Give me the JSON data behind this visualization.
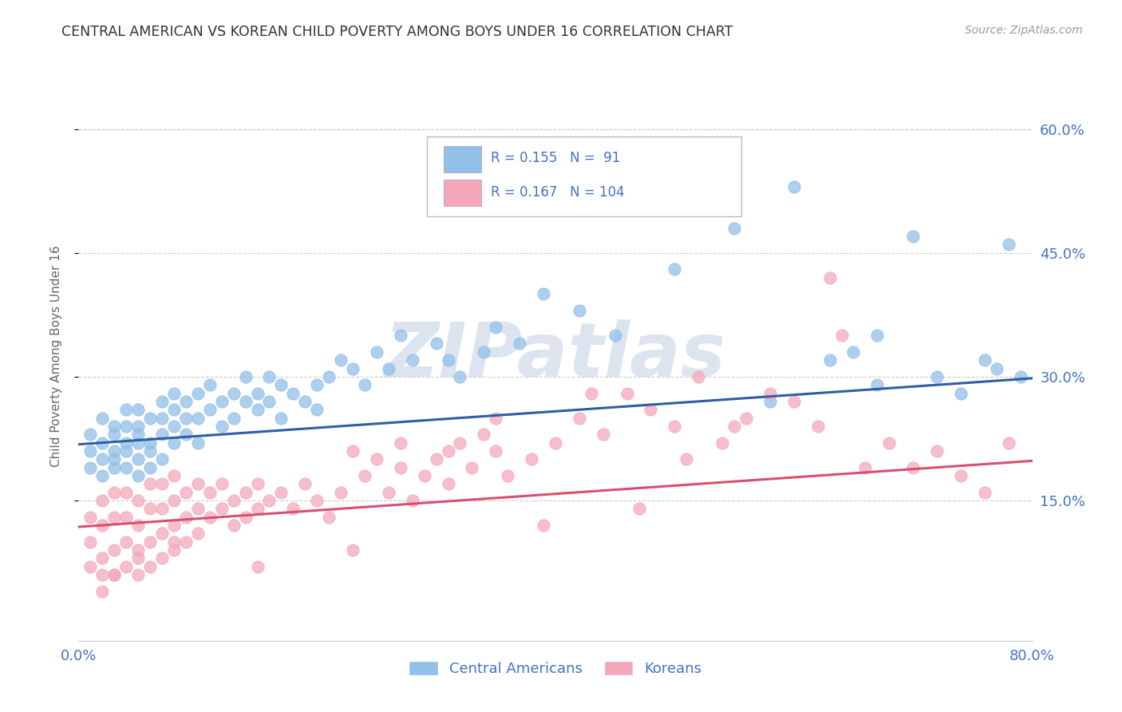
{
  "title": "CENTRAL AMERICAN VS KOREAN CHILD POVERTY AMONG BOYS UNDER 16 CORRELATION CHART",
  "source": "Source: ZipAtlas.com",
  "ylabel": "Child Poverty Among Boys Under 16",
  "xlim": [
    0.0,
    0.8
  ],
  "ylim": [
    -0.02,
    0.67
  ],
  "yticks": [
    0.15,
    0.3,
    0.45,
    0.6
  ],
  "ytick_labels": [
    "15.0%",
    "30.0%",
    "45.0%",
    "60.0%"
  ],
  "xticks": [
    0.0,
    0.8
  ],
  "xtick_labels": [
    "0.0%",
    "80.0%"
  ],
  "R_blue": 0.155,
  "N_blue": 91,
  "R_pink": 0.167,
  "N_pink": 104,
  "blue_color": "#92C0E8",
  "pink_color": "#F4A8BA",
  "blue_line_color": "#2E5FA3",
  "pink_line_color": "#D94F6E",
  "label_color": "#4472C4",
  "title_color": "#333333",
  "watermark_color": "#DCE4F0",
  "background_color": "#FFFFFF",
  "grid_color": "#CCCCCC",
  "legend_label_blue": "Central Americans",
  "legend_label_pink": "Koreans",
  "blue_trend_x": [
    0.0,
    0.8
  ],
  "blue_trend_y": [
    0.218,
    0.298
  ],
  "pink_trend_x": [
    0.0,
    0.8
  ],
  "pink_trend_y": [
    0.118,
    0.198
  ],
  "blue_scatter_x": [
    0.01,
    0.01,
    0.01,
    0.02,
    0.02,
    0.02,
    0.02,
    0.03,
    0.03,
    0.03,
    0.03,
    0.03,
    0.04,
    0.04,
    0.04,
    0.04,
    0.04,
    0.05,
    0.05,
    0.05,
    0.05,
    0.05,
    0.05,
    0.06,
    0.06,
    0.06,
    0.06,
    0.07,
    0.07,
    0.07,
    0.07,
    0.08,
    0.08,
    0.08,
    0.08,
    0.09,
    0.09,
    0.09,
    0.1,
    0.1,
    0.1,
    0.11,
    0.11,
    0.12,
    0.12,
    0.13,
    0.13,
    0.14,
    0.14,
    0.15,
    0.15,
    0.16,
    0.16,
    0.17,
    0.17,
    0.18,
    0.19,
    0.2,
    0.2,
    0.21,
    0.22,
    0.23,
    0.24,
    0.25,
    0.26,
    0.27,
    0.28,
    0.3,
    0.31,
    0.32,
    0.34,
    0.35,
    0.37,
    0.39,
    0.42,
    0.45,
    0.5,
    0.55,
    0.6,
    0.63,
    0.65,
    0.67,
    0.7,
    0.72,
    0.74,
    0.76,
    0.77,
    0.78,
    0.79,
    0.67,
    0.58
  ],
  "blue_scatter_y": [
    0.21,
    0.19,
    0.23,
    0.2,
    0.22,
    0.18,
    0.25,
    0.21,
    0.23,
    0.19,
    0.24,
    0.2,
    0.22,
    0.19,
    0.24,
    0.21,
    0.26,
    0.22,
    0.2,
    0.24,
    0.18,
    0.26,
    0.23,
    0.21,
    0.25,
    0.22,
    0.19,
    0.23,
    0.2,
    0.25,
    0.27,
    0.24,
    0.22,
    0.26,
    0.28,
    0.25,
    0.23,
    0.27,
    0.25,
    0.28,
    0.22,
    0.26,
    0.29,
    0.27,
    0.24,
    0.28,
    0.25,
    0.27,
    0.3,
    0.28,
    0.26,
    0.3,
    0.27,
    0.25,
    0.29,
    0.28,
    0.27,
    0.29,
    0.26,
    0.3,
    0.32,
    0.31,
    0.29,
    0.33,
    0.31,
    0.35,
    0.32,
    0.34,
    0.32,
    0.3,
    0.33,
    0.36,
    0.34,
    0.4,
    0.38,
    0.35,
    0.43,
    0.48,
    0.53,
    0.32,
    0.33,
    0.35,
    0.47,
    0.3,
    0.28,
    0.32,
    0.31,
    0.46,
    0.3,
    0.29,
    0.27
  ],
  "pink_scatter_x": [
    0.01,
    0.01,
    0.01,
    0.02,
    0.02,
    0.02,
    0.02,
    0.03,
    0.03,
    0.03,
    0.03,
    0.04,
    0.04,
    0.04,
    0.04,
    0.05,
    0.05,
    0.05,
    0.05,
    0.06,
    0.06,
    0.06,
    0.06,
    0.07,
    0.07,
    0.07,
    0.07,
    0.08,
    0.08,
    0.08,
    0.08,
    0.09,
    0.09,
    0.09,
    0.1,
    0.1,
    0.1,
    0.11,
    0.11,
    0.12,
    0.12,
    0.13,
    0.13,
    0.14,
    0.14,
    0.15,
    0.15,
    0.16,
    0.17,
    0.18,
    0.19,
    0.2,
    0.21,
    0.22,
    0.23,
    0.24,
    0.25,
    0.26,
    0.27,
    0.28,
    0.29,
    0.3,
    0.31,
    0.32,
    0.33,
    0.34,
    0.35,
    0.36,
    0.38,
    0.4,
    0.42,
    0.44,
    0.46,
    0.48,
    0.5,
    0.52,
    0.54,
    0.56,
    0.58,
    0.6,
    0.62,
    0.64,
    0.66,
    0.68,
    0.7,
    0.72,
    0.74,
    0.76,
    0.78,
    0.63,
    0.55,
    0.47,
    0.39,
    0.31,
    0.23,
    0.15,
    0.08,
    0.05,
    0.03,
    0.02,
    0.27,
    0.35,
    0.43,
    0.51
  ],
  "pink_scatter_y": [
    0.1,
    0.07,
    0.13,
    0.08,
    0.12,
    0.06,
    0.15,
    0.09,
    0.13,
    0.06,
    0.16,
    0.1,
    0.13,
    0.07,
    0.16,
    0.09,
    0.12,
    0.06,
    0.15,
    0.1,
    0.14,
    0.07,
    0.17,
    0.11,
    0.14,
    0.08,
    0.17,
    0.12,
    0.15,
    0.09,
    0.18,
    0.13,
    0.16,
    0.1,
    0.14,
    0.11,
    0.17,
    0.13,
    0.16,
    0.14,
    0.17,
    0.12,
    0.15,
    0.13,
    0.16,
    0.14,
    0.17,
    0.15,
    0.16,
    0.14,
    0.17,
    0.15,
    0.13,
    0.16,
    0.21,
    0.18,
    0.2,
    0.16,
    0.19,
    0.15,
    0.18,
    0.2,
    0.17,
    0.22,
    0.19,
    0.23,
    0.21,
    0.18,
    0.2,
    0.22,
    0.25,
    0.23,
    0.28,
    0.26,
    0.24,
    0.3,
    0.22,
    0.25,
    0.28,
    0.27,
    0.24,
    0.35,
    0.19,
    0.22,
    0.19,
    0.21,
    0.18,
    0.16,
    0.22,
    0.42,
    0.24,
    0.14,
    0.12,
    0.21,
    0.09,
    0.07,
    0.1,
    0.08,
    0.06,
    0.04,
    0.22,
    0.25,
    0.28,
    0.2
  ]
}
